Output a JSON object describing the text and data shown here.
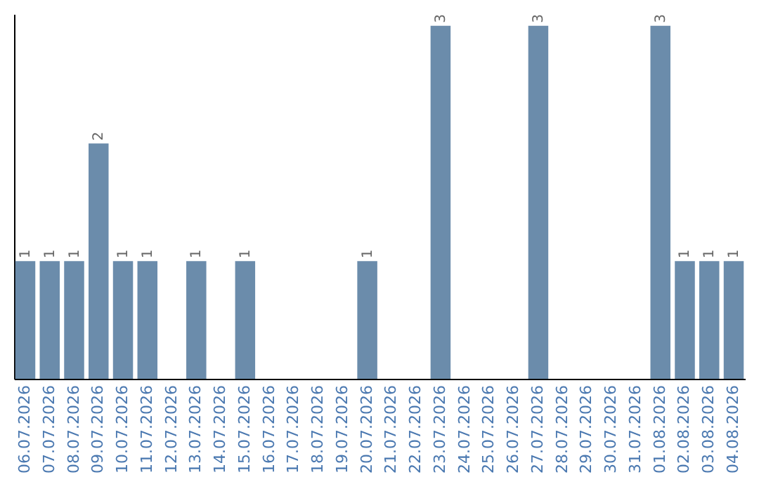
{
  "chart_data": {
    "type": "bar",
    "categories": [
      "06.07.2026",
      "07.07.2026",
      "08.07.2026",
      "09.07.2026",
      "10.07.2026",
      "11.07.2026",
      "12.07.2026",
      "13.07.2026",
      "14.07.2026",
      "15.07.2026",
      "16.07.2026",
      "17.07.2026",
      "18.07.2026",
      "19.07.2026",
      "20.07.2026",
      "21.07.2026",
      "22.07.2026",
      "23.07.2026",
      "24.07.2026",
      "25.07.2026",
      "26.07.2026",
      "27.07.2026",
      "28.07.2026",
      "29.07.2026",
      "30.07.2026",
      "31.07.2026",
      "01.08.2026",
      "02.08.2026",
      "03.08.2026",
      "04.08.2026"
    ],
    "values": [
      1,
      1,
      1,
      2,
      1,
      1,
      null,
      1,
      null,
      1,
      null,
      null,
      null,
      null,
      1,
      null,
      null,
      3,
      null,
      null,
      null,
      3,
      null,
      null,
      null,
      null,
      3,
      1,
      1,
      1
    ],
    "color": "#6b8cab",
    "ylim": [
      0,
      3.1
    ],
    "data_labels": true,
    "tick_labels": "x"
  }
}
